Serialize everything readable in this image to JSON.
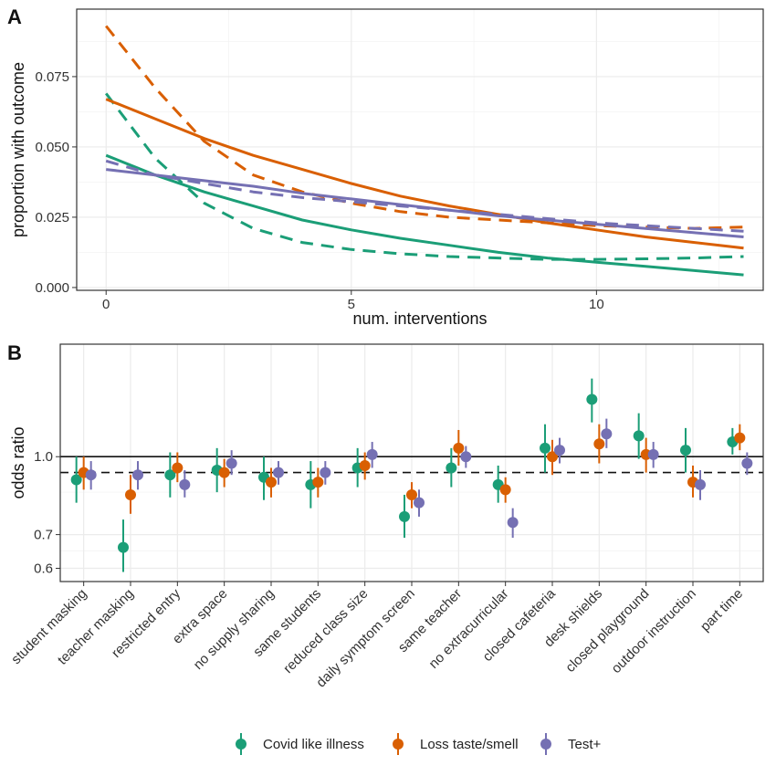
{
  "colors": {
    "covid": "#1b9e77",
    "taste": "#d95f02",
    "test": "#7570b3",
    "grid_major": "#ebebeb",
    "grid_minor": "#f4f4f4",
    "frame": "#333333"
  },
  "legend": {
    "items": [
      {
        "key": "covid",
        "label": "Covid like illness"
      },
      {
        "key": "taste",
        "label": "Loss taste/smell"
      },
      {
        "key": "test",
        "label": "Test+"
      }
    ]
  },
  "chart_data": [
    {
      "panel": "A",
      "type": "line",
      "xlabel": "num. interventions",
      "ylabel": "proportion with outcome",
      "xlim": [
        -0.6,
        13.4
      ],
      "ylim": [
        -0.001,
        0.099
      ],
      "xticks": [
        0,
        5,
        10
      ],
      "xtick_labels": [
        "0",
        "5",
        "10"
      ],
      "yticks": [
        0.0,
        0.025,
        0.05,
        0.075
      ],
      "ytick_labels": [
        "0.000",
        "0.025",
        "0.050",
        "0.075"
      ],
      "grid": true,
      "series": [
        {
          "key": "covid",
          "style": "solid",
          "x": [
            0,
            1,
            2,
            3,
            4,
            5,
            6,
            7,
            8,
            9,
            10,
            11,
            12,
            13
          ],
          "y": [
            0.047,
            0.04,
            0.034,
            0.029,
            0.024,
            0.0205,
            0.0175,
            0.015,
            0.0125,
            0.0105,
            0.009,
            0.0075,
            0.006,
            0.0045
          ]
        },
        {
          "key": "covid",
          "style": "dashed",
          "x": [
            0,
            1,
            2,
            3,
            4,
            5,
            6,
            7,
            8,
            9,
            10,
            11,
            12,
            13
          ],
          "y": [
            0.069,
            0.046,
            0.03,
            0.021,
            0.016,
            0.0135,
            0.012,
            0.011,
            0.0105,
            0.01,
            0.01,
            0.0102,
            0.0105,
            0.011
          ]
        },
        {
          "key": "taste",
          "style": "solid",
          "x": [
            0,
            1,
            2,
            3,
            4,
            5,
            6,
            7,
            8,
            9,
            10,
            11,
            12,
            13
          ],
          "y": [
            0.067,
            0.06,
            0.053,
            0.047,
            0.042,
            0.037,
            0.0325,
            0.029,
            0.026,
            0.023,
            0.0205,
            0.018,
            0.016,
            0.014
          ]
        },
        {
          "key": "taste",
          "style": "dashed",
          "x": [
            0,
            1,
            2,
            3,
            4,
            5,
            6,
            7,
            8,
            9,
            10,
            11,
            12,
            13
          ],
          "y": [
            0.093,
            0.071,
            0.052,
            0.04,
            0.034,
            0.03,
            0.027,
            0.025,
            0.024,
            0.023,
            0.022,
            0.0215,
            0.021,
            0.0215
          ]
        },
        {
          "key": "test",
          "style": "solid",
          "x": [
            0,
            1,
            2,
            3,
            4,
            5,
            6,
            7,
            8,
            9,
            10,
            11,
            12,
            13
          ],
          "y": [
            0.042,
            0.04,
            0.038,
            0.036,
            0.0335,
            0.0315,
            0.0295,
            0.0275,
            0.0255,
            0.024,
            0.0225,
            0.021,
            0.0195,
            0.018
          ]
        },
        {
          "key": "test",
          "style": "dashed",
          "x": [
            0,
            1,
            2,
            3,
            4,
            5,
            6,
            7,
            8,
            9,
            10,
            11,
            12,
            13
          ],
          "y": [
            0.045,
            0.04,
            0.037,
            0.034,
            0.032,
            0.0305,
            0.029,
            0.0275,
            0.026,
            0.0245,
            0.023,
            0.022,
            0.021,
            0.02
          ]
        }
      ]
    },
    {
      "panel": "B",
      "type": "scatter",
      "ylabel": "odds ratio",
      "yscale": "log",
      "ylim": [
        0.5647,
        1.6735
      ],
      "yticks": [
        0.6,
        0.7,
        1.0
      ],
      "ytick_labels": [
        "0.6",
        "0.7",
        "1.0"
      ],
      "hline_solid": 1.0,
      "hline_dashed": 0.93,
      "grid": true,
      "categories": [
        "student masking",
        "teacher masking",
        "restricted entry",
        "extra space",
        "no supply sharing",
        "same students",
        "reduced class size",
        "daily symptom screen",
        "same teacher",
        "no extracurricular",
        "closed cafeteria",
        "desk shields",
        "closed playground",
        "outdoor instruction",
        "part time"
      ],
      "series": [
        {
          "key": "covid",
          "values": [
            0.9,
            0.66,
            0.92,
            0.94,
            0.91,
            0.88,
            0.95,
            0.76,
            0.95,
            0.88,
            1.04,
            1.3,
            1.1,
            1.03,
            1.07
          ],
          "lower": [
            0.81,
            0.59,
            0.83,
            0.85,
            0.82,
            0.79,
            0.87,
            0.69,
            0.87,
            0.81,
            0.93,
            1.17,
            0.99,
            0.93,
            1.01
          ],
          "upper": [
            1.0,
            0.75,
            1.02,
            1.04,
            1.0,
            0.98,
            1.04,
            0.84,
            1.04,
            0.96,
            1.16,
            1.43,
            1.22,
            1.14,
            1.14
          ]
        },
        {
          "key": "taste",
          "values": [
            0.93,
            0.84,
            0.95,
            0.93,
            0.89,
            0.89,
            0.96,
            0.84,
            1.04,
            0.86,
            1.0,
            1.06,
            1.01,
            0.89,
            1.09
          ],
          "lower": [
            0.86,
            0.77,
            0.89,
            0.87,
            0.83,
            0.83,
            0.9,
            0.79,
            0.96,
            0.81,
            0.92,
            0.97,
            0.93,
            0.83,
            1.03
          ],
          "upper": [
            1.0,
            0.92,
            1.02,
            0.99,
            0.95,
            0.95,
            1.02,
            0.89,
            1.13,
            0.91,
            1.08,
            1.16,
            1.09,
            0.96,
            1.16
          ]
        },
        {
          "key": "test",
          "values": [
            0.92,
            0.92,
            0.88,
            0.97,
            0.93,
            0.93,
            1.01,
            0.81,
            1.0,
            0.74,
            1.03,
            1.11,
            1.01,
            0.88,
            0.97
          ],
          "lower": [
            0.86,
            0.86,
            0.83,
            0.92,
            0.88,
            0.88,
            0.95,
            0.76,
            0.95,
            0.69,
            0.97,
            1.04,
            0.95,
            0.82,
            0.92
          ],
          "upper": [
            0.98,
            0.98,
            0.94,
            1.03,
            0.98,
            0.98,
            1.07,
            0.86,
            1.05,
            0.79,
            1.09,
            1.19,
            1.07,
            0.94,
            1.02
          ]
        }
      ]
    }
  ]
}
